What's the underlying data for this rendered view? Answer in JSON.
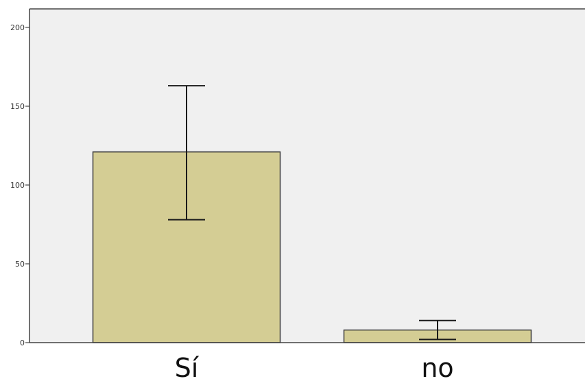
{
  "chart_data": {
    "type": "bar",
    "categories": [
      "Sí",
      "no"
    ],
    "values": [
      121,
      8
    ],
    "error_bars": [
      {
        "low": 78,
        "high": 163
      },
      {
        "low": 2,
        "high": 14
      }
    ],
    "title": "",
    "xlabel": "",
    "ylabel": "",
    "ylim": [
      0,
      200
    ],
    "yticks": [
      0,
      50,
      100,
      150,
      200
    ],
    "ytick_labels": [
      "0",
      "50",
      "100",
      "150",
      "200"
    ],
    "grid": false,
    "legend": "none",
    "colors": {
      "plot_background": "#f0f0f0",
      "bar_fill": "#d4cd94",
      "bar_stroke": "#3c3c3c",
      "error_bar": "#1a1a1a",
      "axis": "#444444"
    }
  }
}
